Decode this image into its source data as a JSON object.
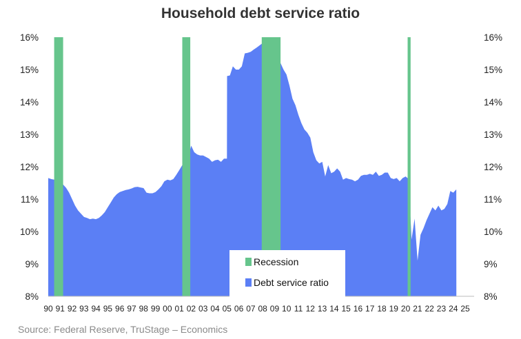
{
  "chart_data": {
    "type": "area",
    "title": "Household debt service ratio",
    "ylim": [
      8,
      16
    ],
    "xlim": [
      1990.0,
      2025.75
    ],
    "yticks": [
      "8%",
      "9%",
      "10%",
      "11%",
      "12%",
      "13%",
      "14%",
      "15%",
      "16%"
    ],
    "yticks_right": [
      "8%",
      "9%",
      "10%",
      "11%",
      "12%",
      "13%",
      "14%",
      "15%",
      "16%"
    ],
    "xticks": [
      "90",
      "91",
      "92",
      "93",
      "94",
      "95",
      "96",
      "97",
      "98",
      "99",
      "00",
      "01",
      "02",
      "03",
      "04",
      "05",
      "06",
      "07",
      "08",
      "09",
      "10",
      "11",
      "12",
      "13",
      "14",
      "15",
      "16",
      "17",
      "18",
      "19",
      "20",
      "21",
      "22",
      "23",
      "24",
      "25"
    ],
    "legend_position": "bottom-center",
    "grid": false,
    "series": [
      {
        "name": "Debt service ratio",
        "color": "#5b7ff5",
        "points": [
          [
            1990.0,
            11.65
          ],
          [
            1990.25,
            11.62
          ],
          [
            1990.5,
            11.6
          ],
          [
            1990.75,
            11.6
          ],
          [
            1991.0,
            11.55
          ],
          [
            1991.25,
            11.45
          ],
          [
            1991.5,
            11.35
          ],
          [
            1991.75,
            11.2
          ],
          [
            1992.0,
            11.0
          ],
          [
            1992.25,
            10.8
          ],
          [
            1992.5,
            10.65
          ],
          [
            1992.75,
            10.55
          ],
          [
            1993.0,
            10.45
          ],
          [
            1993.25,
            10.42
          ],
          [
            1993.5,
            10.38
          ],
          [
            1993.75,
            10.4
          ],
          [
            1994.0,
            10.38
          ],
          [
            1994.25,
            10.42
          ],
          [
            1994.5,
            10.5
          ],
          [
            1994.75,
            10.6
          ],
          [
            1995.0,
            10.75
          ],
          [
            1995.25,
            10.9
          ],
          [
            1995.5,
            11.05
          ],
          [
            1995.75,
            11.15
          ],
          [
            1996.0,
            11.22
          ],
          [
            1996.25,
            11.25
          ],
          [
            1996.5,
            11.28
          ],
          [
            1996.75,
            11.3
          ],
          [
            1997.0,
            11.33
          ],
          [
            1997.25,
            11.37
          ],
          [
            1997.5,
            11.38
          ],
          [
            1997.75,
            11.36
          ],
          [
            1998.0,
            11.34
          ],
          [
            1998.25,
            11.2
          ],
          [
            1998.5,
            11.18
          ],
          [
            1998.75,
            11.18
          ],
          [
            1999.0,
            11.22
          ],
          [
            1999.25,
            11.3
          ],
          [
            1999.5,
            11.4
          ],
          [
            1999.75,
            11.55
          ],
          [
            2000.0,
            11.6
          ],
          [
            2000.25,
            11.58
          ],
          [
            2000.5,
            11.62
          ],
          [
            2000.75,
            11.75
          ],
          [
            2001.0,
            11.9
          ],
          [
            2001.25,
            12.05
          ],
          [
            2001.5,
            12.2
          ],
          [
            2001.75,
            12.3
          ],
          [
            2002.0,
            12.65
          ],
          [
            2002.25,
            12.45
          ],
          [
            2002.5,
            12.38
          ],
          [
            2002.75,
            12.35
          ],
          [
            2003.0,
            12.35
          ],
          [
            2003.25,
            12.3
          ],
          [
            2003.5,
            12.25
          ],
          [
            2003.75,
            12.15
          ],
          [
            2004.0,
            12.2
          ],
          [
            2004.25,
            12.22
          ],
          [
            2004.5,
            12.15
          ],
          [
            2004.75,
            12.25
          ],
          [
            2005.0,
            12.25
          ],
          [
            2005.01,
            14.8
          ],
          [
            2005.25,
            14.82
          ],
          [
            2005.5,
            15.1
          ],
          [
            2005.75,
            15.0
          ],
          [
            2006.0,
            15.0
          ],
          [
            2006.25,
            15.1
          ],
          [
            2006.5,
            15.5
          ],
          [
            2006.75,
            15.52
          ],
          [
            2007.0,
            15.55
          ],
          [
            2007.25,
            15.62
          ],
          [
            2007.5,
            15.68
          ],
          [
            2007.75,
            15.75
          ],
          [
            2008.0,
            15.82
          ],
          [
            2008.25,
            15.6
          ],
          [
            2008.5,
            15.35
          ],
          [
            2008.75,
            15.6
          ],
          [
            2009.0,
            15.75
          ],
          [
            2009.25,
            15.6
          ],
          [
            2009.5,
            15.2
          ],
          [
            2009.75,
            15.0
          ],
          [
            2010.0,
            14.85
          ],
          [
            2010.25,
            14.5
          ],
          [
            2010.5,
            14.1
          ],
          [
            2010.75,
            13.9
          ],
          [
            2011.0,
            13.6
          ],
          [
            2011.25,
            13.35
          ],
          [
            2011.5,
            13.15
          ],
          [
            2011.75,
            13.05
          ],
          [
            2012.0,
            12.9
          ],
          [
            2012.25,
            12.45
          ],
          [
            2012.5,
            12.2
          ],
          [
            2012.75,
            12.1
          ],
          [
            2013.0,
            12.15
          ],
          [
            2013.25,
            11.7
          ],
          [
            2013.5,
            12.05
          ],
          [
            2013.75,
            11.8
          ],
          [
            2014.0,
            11.85
          ],
          [
            2014.25,
            11.95
          ],
          [
            2014.5,
            11.85
          ],
          [
            2014.75,
            11.6
          ],
          [
            2015.0,
            11.65
          ],
          [
            2015.25,
            11.62
          ],
          [
            2015.5,
            11.6
          ],
          [
            2015.75,
            11.55
          ],
          [
            2016.0,
            11.6
          ],
          [
            2016.25,
            11.72
          ],
          [
            2016.5,
            11.75
          ],
          [
            2016.75,
            11.75
          ],
          [
            2017.0,
            11.78
          ],
          [
            2017.25,
            11.75
          ],
          [
            2017.5,
            11.85
          ],
          [
            2017.75,
            11.72
          ],
          [
            2018.0,
            11.75
          ],
          [
            2018.25,
            11.82
          ],
          [
            2018.5,
            11.82
          ],
          [
            2018.75,
            11.65
          ],
          [
            2019.0,
            11.62
          ],
          [
            2019.25,
            11.65
          ],
          [
            2019.5,
            11.55
          ],
          [
            2019.75,
            11.65
          ],
          [
            2020.0,
            11.7
          ],
          [
            2020.25,
            11.62
          ],
          [
            2020.5,
            9.75
          ],
          [
            2020.75,
            10.4
          ],
          [
            2021.0,
            9.1
          ],
          [
            2021.25,
            9.9
          ],
          [
            2021.5,
            10.1
          ],
          [
            2021.75,
            10.35
          ],
          [
            2022.0,
            10.55
          ],
          [
            2022.25,
            10.75
          ],
          [
            2022.5,
            10.65
          ],
          [
            2022.75,
            10.8
          ],
          [
            2023.0,
            10.65
          ],
          [
            2023.25,
            10.7
          ],
          [
            2023.5,
            10.85
          ],
          [
            2023.75,
            11.25
          ],
          [
            2024.0,
            11.2
          ],
          [
            2024.25,
            11.3
          ],
          [
            2024.26,
            8.0
          ],
          [
            2025.75,
            8.0
          ]
        ]
      },
      {
        "name": "Recession",
        "color": "#66c58c",
        "periods": [
          [
            1990.5,
            1991.25
          ],
          [
            2001.25,
            2001.92
          ],
          [
            2007.92,
            2009.5
          ],
          [
            2020.17,
            2020.42
          ]
        ]
      }
    ]
  },
  "source_text": "Source: Federal Reserve, TruStage – Economics"
}
